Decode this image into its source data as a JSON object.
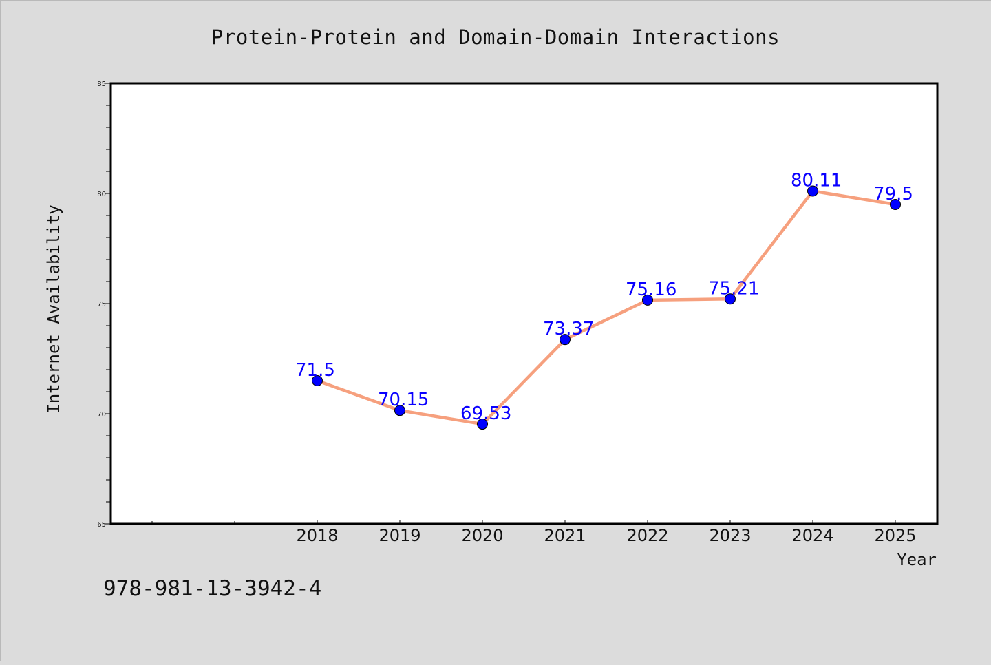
{
  "chart_data": {
    "type": "line",
    "title": "Protein-Protein and Domain-Domain Interactions",
    "xlabel": "Year",
    "ylabel": "Internet Availability",
    "categories": [
      "2018",
      "2019",
      "2020",
      "2021",
      "2022",
      "2023",
      "2024",
      "2025"
    ],
    "series": [
      {
        "values": [
          71.5,
          70.15,
          69.53,
          73.37,
          75.16,
          75.21,
          80.11,
          79.5
        ],
        "data_labels": [
          "71.5",
          "70.15",
          "69.53",
          "73.37",
          "75.16",
          "75.21",
          "80.11",
          "79.5"
        ],
        "line_color": "#f6a07e",
        "marker_color": "#0000ff"
      }
    ],
    "ylim": [
      65,
      85
    ],
    "yticks": [
      "65",
      "70",
      "75",
      "80",
      "85"
    ],
    "grid": false,
    "legend": "none",
    "label_color": "#0000ff"
  },
  "footer": {
    "isbn": "978-981-13-3942-4"
  }
}
